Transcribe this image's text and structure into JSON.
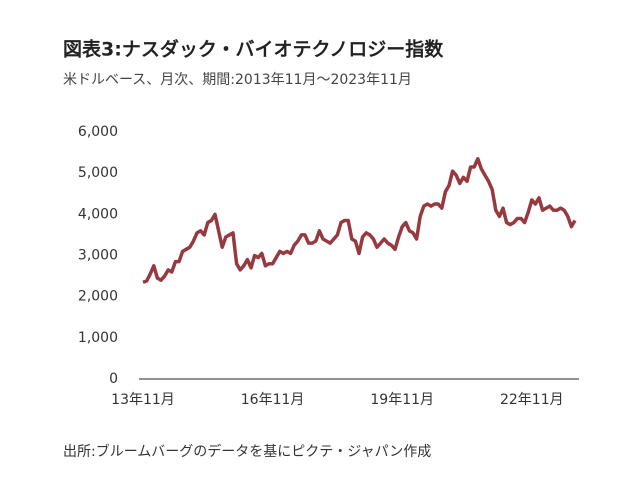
{
  "chart_data": {
    "type": "line",
    "title": "図表3:ナスダック・バイオテクノロジー指数",
    "subtitle": "米ドルベース、月次、期間:2013年11月〜2023年11月",
    "source": "出所:ブルームバーグのデータを基にピクテ・ジャパン作成",
    "categories": [
      "13年11月",
      null,
      null,
      null,
      null,
      null,
      null,
      null,
      null,
      null,
      null,
      null,
      null,
      null,
      null,
      null,
      null,
      null,
      null,
      null,
      null,
      null,
      null,
      null,
      null,
      null,
      null,
      null,
      null,
      null,
      null,
      null,
      null,
      null,
      null,
      null,
      "16年11月",
      null,
      null,
      null,
      null,
      null,
      null,
      null,
      null,
      null,
      null,
      null,
      null,
      null,
      null,
      null,
      null,
      null,
      null,
      null,
      null,
      null,
      null,
      null,
      null,
      null,
      null,
      null,
      null,
      null,
      null,
      null,
      null,
      null,
      null,
      null,
      "19年11月",
      null,
      null,
      null,
      null,
      null,
      null,
      null,
      null,
      null,
      null,
      null,
      null,
      null,
      null,
      null,
      null,
      null,
      null,
      null,
      null,
      null,
      null,
      null,
      null,
      null,
      null,
      null,
      null,
      null,
      null,
      null,
      null,
      null,
      null,
      null,
      "22年11月",
      null,
      null,
      null,
      null,
      null,
      null,
      null,
      null,
      null,
      null,
      null,
      null
    ],
    "series": [
      {
        "name": "ナスダック・バイオテクノロジー指数",
        "color": "#963a40",
        "values": [
          2350,
          2380,
          2550,
          2750,
          2450,
          2400,
          2500,
          2650,
          2600,
          2850,
          2850,
          3100,
          3150,
          3200,
          3350,
          3550,
          3600,
          3500,
          3800,
          3850,
          4000,
          3600,
          3200,
          3450,
          3500,
          3550,
          2800,
          2650,
          2750,
          2900,
          2700,
          3000,
          2950,
          3050,
          2750,
          2800,
          2800,
          2950,
          3100,
          3050,
          3100,
          3050,
          3250,
          3350,
          3500,
          3500,
          3300,
          3300,
          3350,
          3600,
          3400,
          3350,
          3300,
          3400,
          3500,
          3800,
          3850,
          3850,
          3400,
          3350,
          3050,
          3450,
          3550,
          3500,
          3400,
          3200,
          3300,
          3400,
          3300,
          3250,
          3150,
          3450,
          3700,
          3800,
          3600,
          3550,
          3400,
          3950,
          4200,
          4250,
          4200,
          4250,
          4250,
          4150,
          4550,
          4700,
          5050,
          4950,
          4750,
          4900,
          4800,
          5150,
          5150,
          5350,
          5100,
          4950,
          4800,
          4600,
          4100,
          3950,
          4150,
          3800,
          3750,
          3800,
          3900,
          3900,
          3800,
          4050,
          4350,
          4250,
          4400,
          4100,
          4150,
          4200,
          4100,
          4100,
          4150,
          4100,
          3950,
          3700,
          3850
        ]
      }
    ],
    "ylim": [
      0,
      6000
    ],
    "yticks": [
      0,
      {
        "value": 1000,
        "label": "1,000"
      },
      {
        "value": 2000,
        "label": "2,000"
      },
      {
        "value": 3000,
        "label": "3,000"
      },
      {
        "value": 4000,
        "label": "4,000"
      },
      {
        "value": 5000,
        "label": "5,000"
      },
      {
        "value": 6000,
        "label": "6,000"
      }
    ],
    "grid": false
  }
}
